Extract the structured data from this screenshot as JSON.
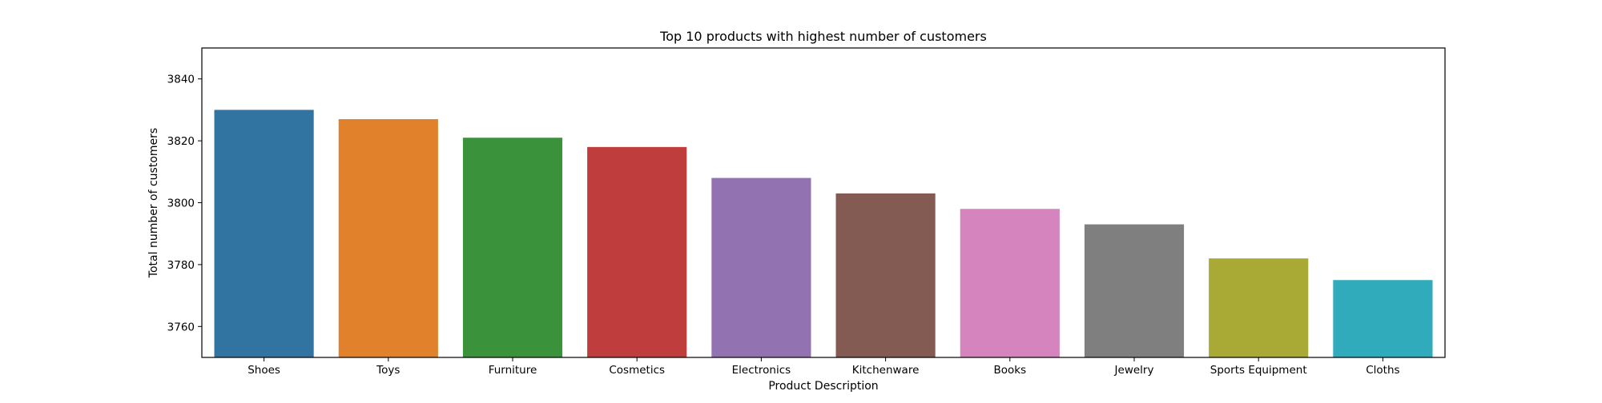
{
  "chart_data": {
    "type": "bar",
    "title": "Top 10 products with highest number of customers",
    "xlabel": "Product Description",
    "ylabel": "Total number of customers",
    "categories": [
      "Shoes",
      "Toys",
      "Furniture",
      "Cosmetics",
      "Electronics",
      "Kitchenware",
      "Books",
      "Jewelry",
      "Sports Equipment",
      "Cloths"
    ],
    "values": [
      3830,
      3827,
      3821,
      3818,
      3808,
      3803,
      3798,
      3793,
      3782,
      3775
    ],
    "colors": [
      "#3274a1",
      "#e1812c",
      "#3a923a",
      "#c03d3e",
      "#9372b2",
      "#845b53",
      "#d684bd",
      "#7f7f7f",
      "#a9aa35",
      "#2fabbc"
    ],
    "ylim": [
      3750,
      3850
    ],
    "yticks": [
      3760,
      3780,
      3800,
      3820,
      3840
    ],
    "grid": false,
    "legend": "none"
  }
}
